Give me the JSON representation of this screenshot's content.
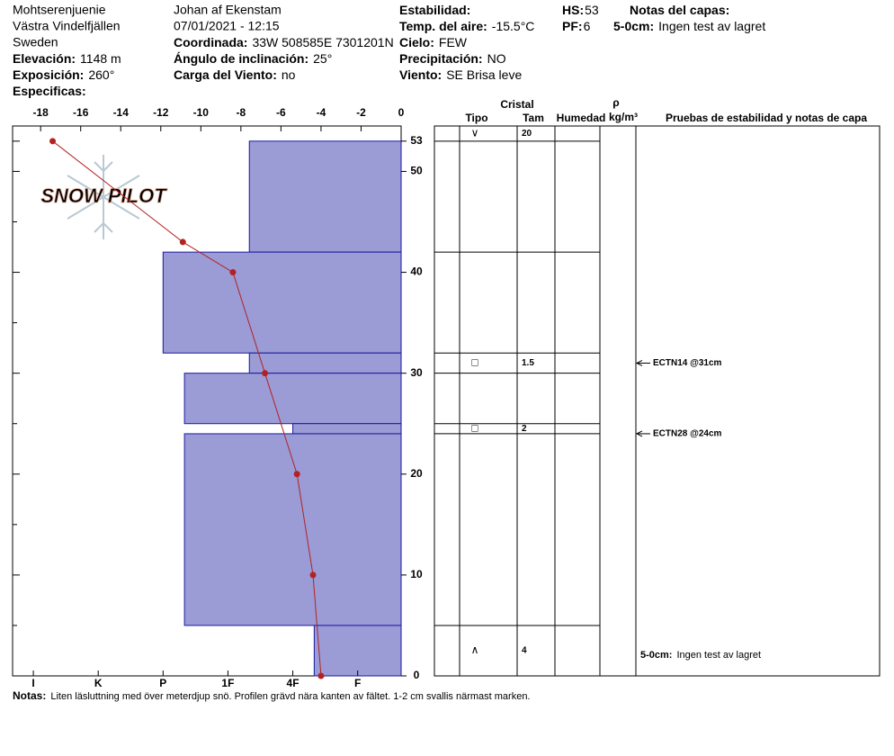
{
  "header": {
    "columns": [
      [
        "Mohtserenjuenie",
        "Västra Vindelfjällen",
        "Sweden",
        {
          "label": "Elevación:",
          "value": "1148 m"
        },
        {
          "label": "Exposición:",
          "value": "260°"
        },
        {
          "label": "Especificas:"
        }
      ],
      [
        "Johan af Ekenstam",
        "07/01/2021 - 12:15",
        {
          "label": "Coordinada:",
          "value": "33W 508585E 7301201N"
        },
        {
          "label": "Ángulo de inclinación:",
          "value": "25°"
        },
        {
          "label": "Carga del Viento:",
          "value": "no"
        }
      ],
      [
        {
          "label": "Estabilidad:"
        },
        {
          "label": "Temp. del aire:",
          "value": "-15.5°C"
        },
        {
          "label": "Cielo:",
          "value": "FEW"
        },
        {
          "label": "Precipitación:",
          "value": "NO"
        },
        {
          "label": "Viento:",
          "value": "SE  Brisa leve"
        }
      ],
      [
        {
          "label": "HS:",
          "value": "53"
        },
        {
          "label": "PF:",
          "value": "6"
        }
      ],
      [
        {
          "label": "Notas del capas:"
        },
        {
          "label": "5-0cm:",
          "value": "Ingen test av lagret"
        }
      ]
    ]
  },
  "logo": "SNOW PILOT",
  "chart_data": {
    "type": "snow-profile",
    "ylim": [
      0,
      54.5
    ],
    "yticks": [
      0,
      10,
      20,
      30,
      40,
      50,
      53
    ],
    "y_minor_ticks": [
      5,
      15,
      25,
      35,
      45
    ],
    "temperature": {
      "xlim": [
        -19.4,
        0
      ],
      "xticks": [
        -18,
        -16,
        -14,
        -12,
        -10,
        -8,
        -6,
        -4,
        -2,
        0
      ],
      "color": "#b22222",
      "heights": [
        53,
        43,
        40,
        30,
        20,
        10,
        0
      ],
      "values": [
        -17.4,
        -10.9,
        -8.4,
        -6.8,
        -5.2,
        -4.4,
        -4.0
      ]
    },
    "hardness": {
      "xlim": [
        0.33,
        6.32
      ],
      "xticks": [
        {
          "value": 1,
          "label": "F"
        },
        {
          "value": 2,
          "label": "4F"
        },
        {
          "value": 3,
          "label": "1F"
        },
        {
          "value": 4,
          "label": "P"
        },
        {
          "value": 5,
          "label": "K"
        },
        {
          "value": 6,
          "label": "I"
        }
      ],
      "color": "#9b9bd6"
    },
    "layers": [
      {
        "top": 53,
        "bottom": 42,
        "hardness": 2.67
      },
      {
        "top": 42,
        "bottom": 32,
        "hardness": 4
      },
      {
        "top": 32,
        "bottom": 30,
        "hardness": 2.67,
        "grain_type": "□",
        "grain_size": 1.5
      },
      {
        "top": 30,
        "bottom": 25,
        "hardness": 3.67
      },
      {
        "top": 25,
        "bottom": 24,
        "hardness": 2,
        "grain_type": "□",
        "grain_size": 2
      },
      {
        "top": 24,
        "bottom": 5,
        "hardness": 3.67
      },
      {
        "top": 5,
        "bottom": 0,
        "hardness": 1.67,
        "grain_type": "∧",
        "grain_size": 4
      }
    ],
    "surface": {
      "grain_type": "∨",
      "grain_size": 20
    },
    "stability_tests": [
      {
        "height": 31,
        "label": "ECTN14 @31cm"
      },
      {
        "height": 24,
        "label": "ECTN28 @24cm"
      }
    ],
    "layer_notes": [
      {
        "label": "5-0cm:",
        "text": "Ingen test av lagret"
      }
    ]
  },
  "table_headers": {
    "crystal": "Cristal",
    "type": "Tipo",
    "size": "Tam",
    "moisture": "Humedad",
    "density": "ρ",
    "density_unit": "kg/m³",
    "tests": "Pruebas de estabilidad y notas de capa"
  },
  "notes": {
    "label": "Notas:",
    "text": "Liten läsluttning med över meterdjup snö. Profilen grävd nära kanten av fältet. 1-2 cm svallis närmast marken."
  }
}
